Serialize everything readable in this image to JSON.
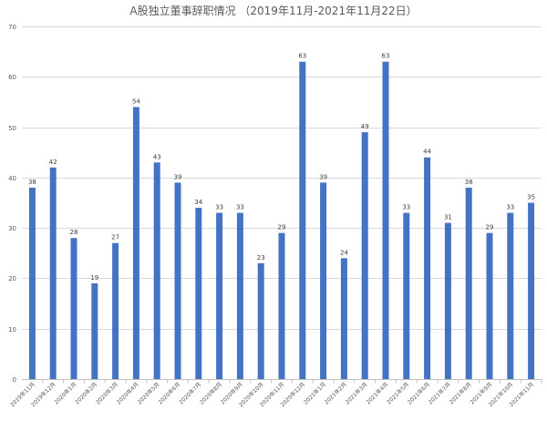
{
  "chart_data": {
    "type": "bar",
    "title": "A股独立董事辞职情况 （2019年11月-2021年11月22日）",
    "xlabel": "",
    "ylabel": "",
    "ylim": [
      0,
      70
    ],
    "yticks": [
      0,
      10,
      20,
      30,
      40,
      50,
      60,
      70
    ],
    "grid": true,
    "legend": "none",
    "bar_color": "#4472C4",
    "categories": [
      "2019年11月",
      "2019年12月",
      "2020年1月",
      "2020年2月",
      "2020年3月",
      "2020年4月",
      "2020年5月",
      "2020年6月",
      "2020年7月",
      "2020年8月",
      "2020年9月",
      "2020年10月",
      "2020年11月",
      "2020年12月",
      "2021年1月",
      "2021年2月",
      "2021年3月",
      "2021年4月",
      "2021年5月",
      "2021年6月",
      "2021年7月",
      "2021年8月",
      "2021年9月",
      "2021年10月",
      "2021年11月"
    ],
    "values": [
      38,
      42,
      28,
      19,
      27,
      54,
      43,
      39,
      34,
      33,
      33,
      23,
      29,
      63,
      39,
      24,
      49,
      63,
      33,
      44,
      31,
      38,
      29,
      33,
      35
    ]
  }
}
